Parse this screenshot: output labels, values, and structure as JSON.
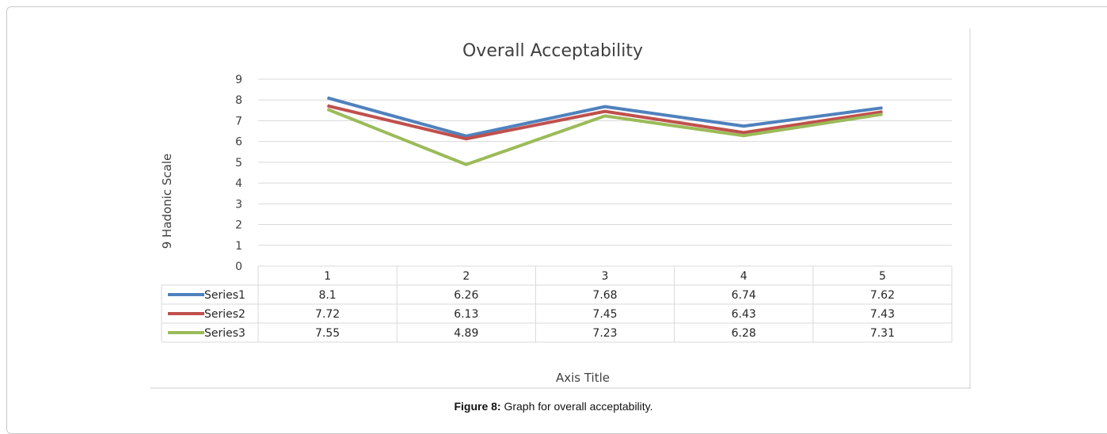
{
  "figure": {
    "caption_prefix": "Figure 8:",
    "caption_text": " Graph for overall acceptability."
  },
  "chart_data": {
    "type": "line",
    "title": "Overall Acceptability",
    "xlabel": "Axis Title",
    "ylabel": "9 Hadonic Scale",
    "categories": [
      "1",
      "2",
      "3",
      "4",
      "5"
    ],
    "ylim": [
      0,
      9
    ],
    "yticks": [
      0,
      1,
      2,
      3,
      4,
      5,
      6,
      7,
      8,
      9
    ],
    "grid": true,
    "legend": "data-table",
    "series": [
      {
        "name": "Series1",
        "color": "#4F81BD",
        "values": [
          8.1,
          6.26,
          7.68,
          6.74,
          7.62
        ],
        "labels": [
          "8.1",
          "6.26",
          "7.68",
          "6.74",
          "7.62"
        ]
      },
      {
        "name": "Series2",
        "color": "#C0504D",
        "values": [
          7.72,
          6.13,
          7.45,
          6.43,
          7.43
        ],
        "labels": [
          "7.72",
          "6.13",
          "7.45",
          "6.43",
          "7.43"
        ]
      },
      {
        "name": "Series3",
        "color": "#9BBB59",
        "values": [
          7.55,
          4.89,
          7.23,
          6.28,
          7.31
        ],
        "labels": [
          "7.55",
          "4.89",
          "7.23",
          "6.28",
          "7.31"
        ]
      }
    ]
  }
}
